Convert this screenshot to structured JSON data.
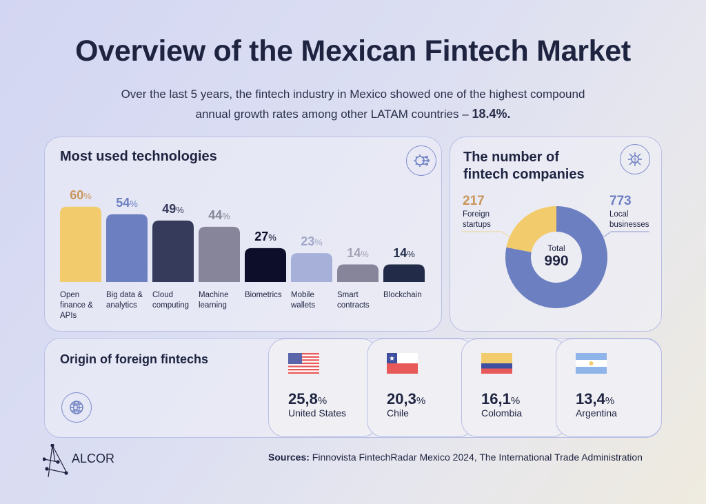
{
  "header": {
    "title": "Overview of the Mexican Fintech Market",
    "subtitle_line1": "Over the last 5 years, the fintech industry in Mexico showed one of the highest compound",
    "subtitle_line2": "annual growth rates among other LATAM countries – ",
    "subtitle_value": "18.4%."
  },
  "chart_data": [
    {
      "type": "bar",
      "title": "Most used technologies",
      "unit": "%",
      "categories": [
        "Open finance & APIs",
        "Big data & analytics",
        "Cloud computing",
        "Machine learning",
        "Biometrics",
        "Mobile wallets",
        "Smart contracts",
        "Blockchain"
      ],
      "category_lines": [
        [
          "Open",
          "finance &",
          "APIs"
        ],
        [
          "Big data &",
          "analytics"
        ],
        [
          "Cloud",
          "computing"
        ],
        [
          "Machine",
          "learning"
        ],
        [
          "Biometrics"
        ],
        [
          "Mobile",
          "wallets"
        ],
        [
          "Smart",
          "contracts"
        ],
        [
          "Blockchain"
        ]
      ],
      "values": [
        60,
        54,
        49,
        44,
        27,
        23,
        14,
        14
      ],
      "colors": [
        "#f2cc6c",
        "#6c7fc1",
        "#363a5b",
        "#878599",
        "#0d0e2a",
        "#a6b0d8",
        "#878599",
        "#222b48"
      ],
      "label_colors": [
        "#c9955a",
        "#6c7fc1",
        "#363a5b",
        "#878599",
        "#0d0e2a",
        "#a0a8c8",
        "#a2a2b4",
        "#222b48"
      ]
    },
    {
      "type": "pie",
      "title": "The number of fintech companies",
      "donut": true,
      "slices": [
        {
          "label": "Foreign startups",
          "value": 217,
          "color": "#f2cc6c",
          "label_color": "#c9955a"
        },
        {
          "label": "Local businesses",
          "value": 773,
          "color": "#6c7fc1",
          "label_color": "#6c7fc1"
        }
      ],
      "center_label": "Total",
      "center_value": "990"
    }
  ],
  "card1": {
    "title": "Most used technologies",
    "icon": "gear-circuit-icon"
  },
  "card2": {
    "title_line1": "The number of",
    "title_line2": "fintech companies",
    "icon": "dollar-network-icon",
    "foreign_value": "217",
    "foreign_line1": "Foreign",
    "foreign_line2": "startups",
    "local_value": "773",
    "local_line1": "Local",
    "local_line2": "businesses",
    "center_label": "Total",
    "center_value": "990"
  },
  "origin": {
    "title": "Origin of foreign fintechs",
    "icon": "globe-chip-icon",
    "countries": [
      {
        "value": "25,8",
        "unit": "%",
        "name": "United States",
        "flag": "us-flag-icon"
      },
      {
        "value": "20,3",
        "unit": "%",
        "name": "Chile",
        "flag": "chile-flag-icon"
      },
      {
        "value": "16,1",
        "unit": "%",
        "name": "Colombia",
        "flag": "colombia-flag-icon"
      },
      {
        "value": "13,4",
        "unit": "%",
        "name": "Argentina",
        "flag": "argentina-flag-icon"
      }
    ]
  },
  "footer": {
    "logo": "ALCOR",
    "sources_label": "Sources:",
    "sources_text": " Finnovista FintechRadar Mexico 2024, The International Trade Administration"
  },
  "colors": {
    "title": "#1e2340",
    "border": "#b9bfe6",
    "accent_blue": "#6c7fc1",
    "accent_yellow": "#f2cc6c"
  }
}
